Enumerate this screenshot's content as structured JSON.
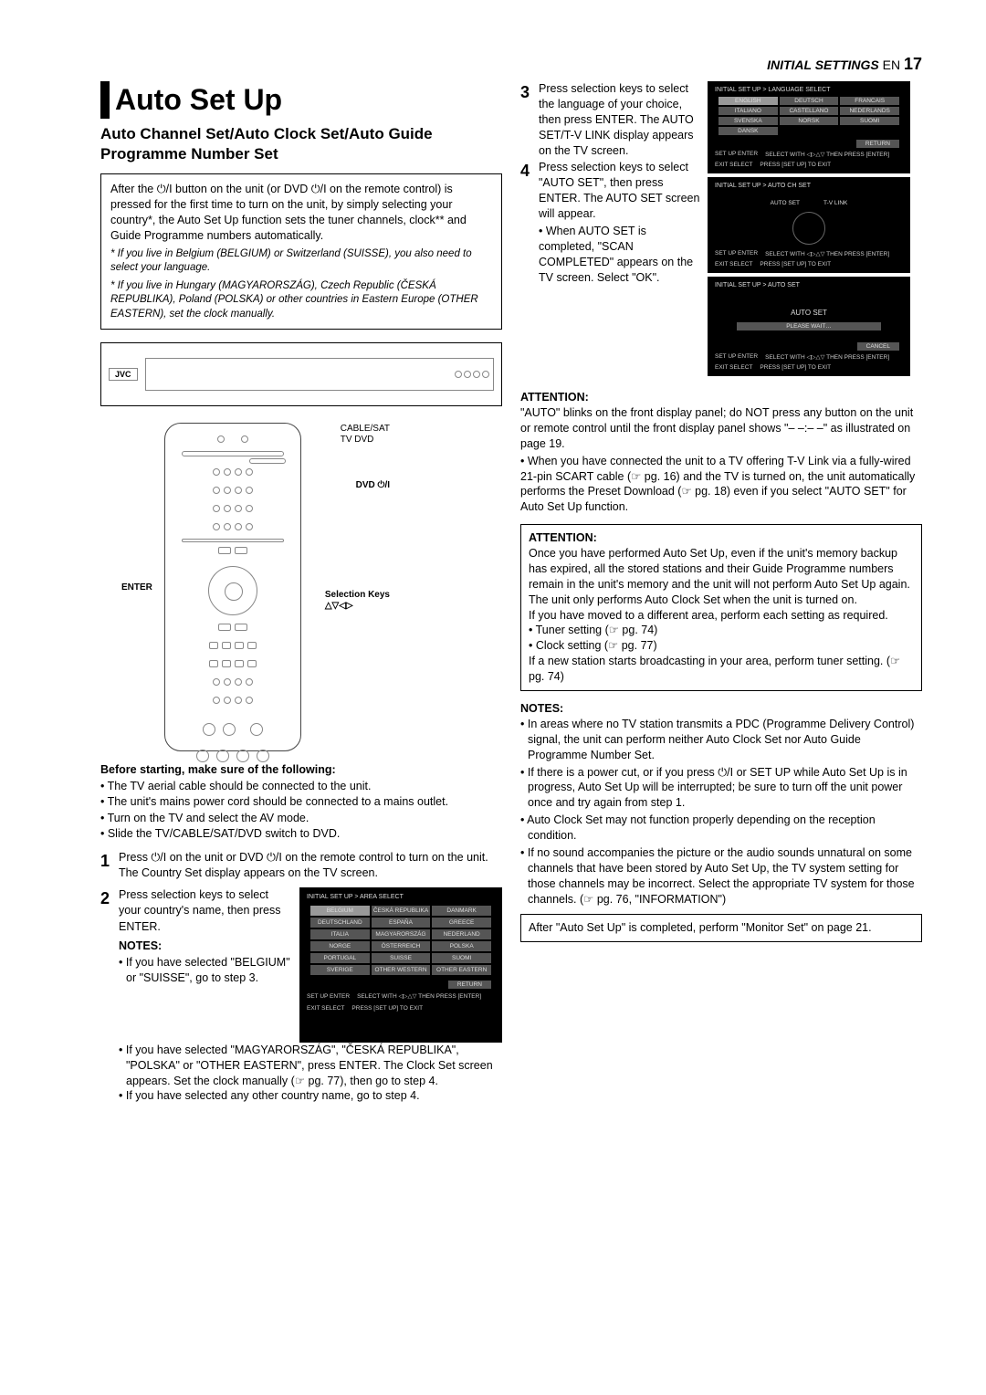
{
  "header": {
    "section": "INITIAL SETTINGS",
    "lang": "EN",
    "page": "17"
  },
  "title": "Auto Set Up",
  "subtitle": "Auto Channel Set/Auto Clock Set/Auto Guide Programme Number Set",
  "intro": {
    "body": "After the ⏻/I button on the unit (or DVD ⏻/I on the remote control) is pressed for the first time to turn on the unit, by simply selecting your country*, the Auto Set Up function sets the tuner channels, clock** and Guide Programme numbers automatically.",
    "foot1": "* If you live in Belgium (BELGIUM) or Switzerland (SUISSE), you also need to select your language.",
    "foot2": "* If you live in Hungary (MAGYARORSZÁG), Czech Republic (ČESKÁ REPUBLIKA), Poland (POLSKA) or other countries in Eastern Europe (OTHER EASTERN), set the clock manually."
  },
  "remote": {
    "lbl_enter": "ENTER",
    "lbl_cablesat": "CABLE/SAT",
    "lbl_tvdvd": "TV   DVD",
    "lbl_dvdpower": "DVD ⏻/I",
    "lbl_selkeys": "Selection Keys",
    "lbl_arrows": "△▽◁▷"
  },
  "prestart": {
    "h": "Before starting, make sure of the following:",
    "b1": "• The TV aerial cable should be connected to the unit.",
    "b2": "• The unit's mains power cord should be connected to a mains outlet.",
    "b3": "• Turn on the TV and select the AV mode.",
    "b4": "• Slide the TV/CABLE/SAT/DVD switch to DVD."
  },
  "steps": {
    "s1": "Press ⏻/I on the unit or DVD ⏻/I on the remote control to turn on the unit. The Country Set display appears on the TV screen.",
    "s2a": "Press selection keys to select your country's name, then press ENTER.",
    "notes_h": "NOTES:",
    "s2b1": "• If you have selected \"BELGIUM\" or \"SUISSE\", go to step 3.",
    "s2b2": "• If you have selected \"MAGYARORSZÁG\", \"ČESKÁ REPUBLIKA\", \"POLSKA\" or \"OTHER EASTERN\", press ENTER. The Clock Set screen appears. Set the clock manually (☞ pg. 77), then go to step 4.",
    "s2b3": "• If you have selected any other country name, go to step 4.",
    "s3": "Press selection keys to select the language of your choice, then press ENTER. The AUTO SET/T-V LINK display appears on the TV screen.",
    "s4": "Press selection keys to select \"AUTO SET\", then press ENTER. The AUTO SET screen will appear.",
    "s4b": "• When AUTO SET is completed, \"SCAN COMPLETED\" appears on the TV screen. Select \"OK\"."
  },
  "osd_area": {
    "title": "INITIAL SET UP > AREA SELECT",
    "cells": [
      "BELGIUM",
      "ČESKÁ REPUBLIKA",
      "DANMARK",
      "DEUTSCHLAND",
      "ESPAÑA",
      "GREECE",
      "ITALIA",
      "MAGYARORSZÁG",
      "NEDERLAND",
      "NORGE",
      "ÖSTERREICH",
      "POLSKA",
      "PORTUGAL",
      "SUISSE",
      "SUOMI",
      "SVERIGE",
      "OTHER WESTERN",
      "OTHER EASTERN"
    ],
    "return": "RETURN",
    "hint1": "SET UP    ENTER",
    "hint2": "SELECT WITH ◁▷△▽ THEN PRESS [ENTER]",
    "hint3": "EXIT      SELECT",
    "hint4": "PRESS [SET UP] TO EXIT"
  },
  "osd_lang": {
    "title": "INITIAL SET UP > LANGUAGE SELECT",
    "cells": [
      "ENGLISH",
      "DEUTSCH",
      "FRANCAIS",
      "ITALIANO",
      "CASTELLANO",
      "NEDERLANDS",
      "SVENSKA",
      "NORSK",
      "SUOMI",
      "DANSK",
      "",
      ""
    ],
    "return": "RETURN",
    "hint1": "SET UP    ENTER",
    "hint2": "SELECT WITH ◁▷△▽ THEN PRESS [ENTER]",
    "hint3": "EXIT      SELECT",
    "hint4": "PRESS [SET UP] TO EXIT"
  },
  "osd_autoch": {
    "title": "INITIAL SET UP > AUTO CH SET",
    "left": "AUTO SET",
    "right": "T-V LINK",
    "hint1": "SET UP    ENTER",
    "hint2": "SELECT WITH ◁▷△▽ THEN PRESS [ENTER]",
    "hint3": "EXIT      SELECT",
    "hint4": "PRESS [SET UP] TO EXIT"
  },
  "osd_autoset": {
    "title": "INITIAL SET UP > AUTO SET",
    "l1": "AUTO SET",
    "l2": "PLEASE WAIT…",
    "cancel": "CANCEL",
    "hint1": "SET UP    ENTER",
    "hint2": "SELECT WITH ◁▷△▽ THEN PRESS [ENTER]",
    "hint3": "EXIT      SELECT",
    "hint4": "PRESS [SET UP] TO EXIT"
  },
  "attention1": {
    "h": "ATTENTION:",
    "p1": "\"AUTO\" blinks on the front display panel; do NOT press any button on the unit or remote control until the front display panel shows \"– –:– –\" as illustrated on page 19.",
    "p2": "• When you have connected the unit to a TV offering T-V Link via a fully-wired 21-pin SCART cable (☞ pg. 16) and the TV is turned on, the unit automatically performs the Preset Download (☞ pg. 18) even if you select \"AUTO SET\" for Auto Set Up function."
  },
  "attention2": {
    "h": "ATTENTION:",
    "p1": "Once you have performed Auto Set Up, even if the unit's memory backup has expired, all the stored stations and their Guide Programme numbers remain in the unit's memory and the unit will not perform Auto Set Up again. The unit only performs Auto Clock Set when the unit is turned on.",
    "p2": "If you have moved to a different area, perform each setting as required.",
    "p3": "• Tuner setting (☞ pg. 74)",
    "p4": "• Clock setting (☞ pg. 77)",
    "p5": "If a new station starts broadcasting in your area, perform tuner setting. (☞ pg. 74)"
  },
  "notes": {
    "h": "NOTES:",
    "n1": "• In areas where no TV station transmits a PDC (Programme Delivery Control) signal, the unit can perform neither Auto Clock Set nor Auto Guide Programme Number Set.",
    "n2": "• If there is a power cut, or if you press ⏻/I or SET UP while Auto Set Up is in progress, Auto Set Up will be interrupted; be sure to turn off the unit power once and try again from step 1.",
    "n3": "• Auto Clock Set may not function properly depending on the reception condition.",
    "n4": "• If no sound accompanies the picture or the audio sounds unnatural on some channels that have been stored by Auto Set Up, the TV system setting for those channels may be incorrect. Select the appropriate TV system for those channels. (☞ pg. 76, \"INFORMATION\")"
  },
  "finalbox": "After \"Auto Set Up\" is completed, perform \"Monitor Set\" on page 21.",
  "device_label": "JVC"
}
